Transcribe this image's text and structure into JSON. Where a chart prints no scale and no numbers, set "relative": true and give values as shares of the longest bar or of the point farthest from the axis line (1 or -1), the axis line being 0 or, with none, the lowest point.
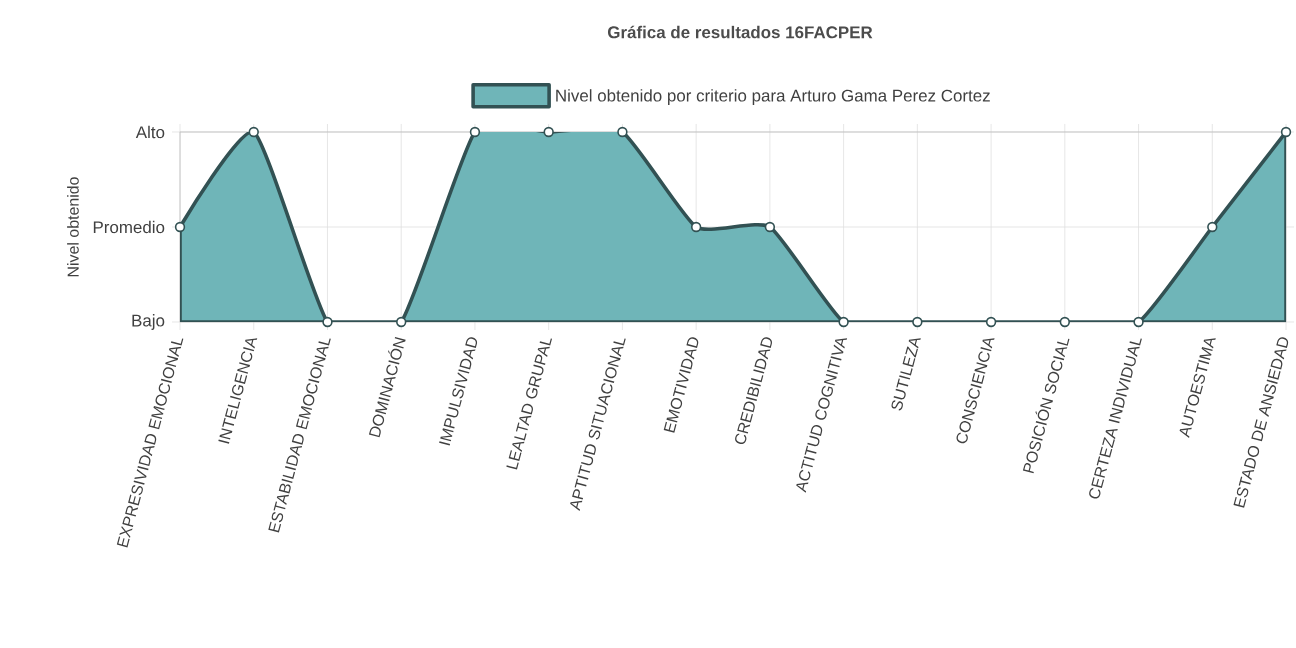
{
  "chart_data": {
    "type": "area",
    "title": "Gráfica de resultados 16FACPER",
    "ylabel": "Nivel obtenido",
    "categories": [
      "EXPRESIVIDAD EMOCIONAL",
      "INTELIGENCIA",
      "ESTABILIDAD EMOCIONAL",
      "DOMINACIÓN",
      "IMPULSIVIDAD",
      "LEALTAD GRUPAL",
      "APTITUD SITUACIONAL",
      "EMOTIVIDAD",
      "CREDIBILIDAD",
      "ACTITUD COGNITIVA",
      "SUTILEZA",
      "CONSCIENCIA",
      "POSICIÓN SOCIAL",
      "CERTEZA INDIVIDUAL",
      "AUTOESTIMA",
      "ESTADO DE ANSIEDAD"
    ],
    "series": [
      {
        "name": "Nivel obtenido por criterio para Arturo Gama Perez Cortez",
        "color": "#6fb5b8",
        "values": [
          0.5,
          1,
          0,
          0,
          1,
          1,
          1,
          0.5,
          0.5,
          0,
          0,
          0,
          0,
          0,
          0.5,
          1
        ]
      }
    ],
    "relative": true,
    "annotations": [
      "Bajo",
      "Promedio",
      "Alto"
    ],
    "grid": true,
    "legend": "top",
    "marker": "circle",
    "line_style": "solid"
  }
}
